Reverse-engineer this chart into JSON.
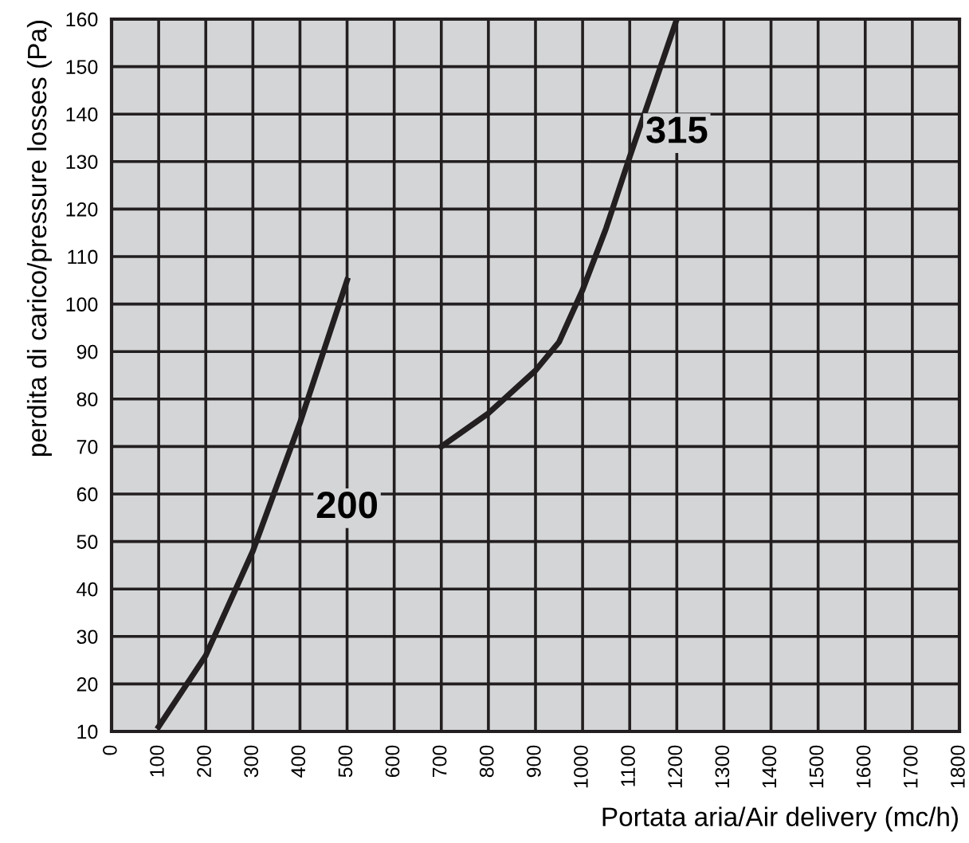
{
  "chart_data": {
    "type": "line",
    "xlabel": "Portata aria/Air delivery (mc/h)",
    "ylabel": "perdita di carico/pressure losses (Pa)",
    "xlim": [
      0,
      1800
    ],
    "ylim": [
      10,
      160
    ],
    "xticks": [
      0,
      100,
      200,
      300,
      400,
      500,
      600,
      700,
      800,
      900,
      1000,
      1100,
      1200,
      1300,
      1400,
      1500,
      1600,
      1700,
      1800
    ],
    "yticks": [
      10,
      20,
      30,
      40,
      50,
      60,
      70,
      80,
      90,
      100,
      110,
      120,
      130,
      140,
      150,
      160
    ],
    "grid": true,
    "marker": "none",
    "line_style": "solid",
    "series": [
      {
        "color": "#231f20",
        "x": [
          100,
          200,
          300,
          400,
          500
        ],
        "values": [
          11,
          26,
          48,
          75,
          105
        ]
      },
      {
        "color": "#231f20",
        "x": [
          700,
          800,
          900,
          950,
          1000,
          1050,
          1100,
          1200
        ],
        "values": [
          70,
          77,
          86,
          92,
          103,
          116,
          131,
          160
        ]
      }
    ],
    "annotations": [
      {
        "text": "200",
        "x": 500,
        "y": 57
      },
      {
        "text": "315",
        "x": 1200,
        "y": 136
      }
    ]
  }
}
